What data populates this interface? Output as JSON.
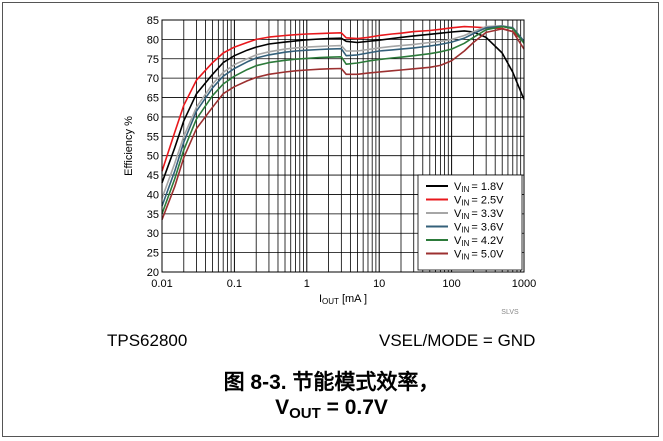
{
  "chart_data": {
    "type": "line",
    "xscale": "log",
    "xlabel": "I",
    "xlabel_sub": "OUT",
    "xlabel_unit": "[mA ]",
    "ylabel": "Efficiency %",
    "xlim": [
      0.01,
      1000
    ],
    "ylim": [
      20,
      85
    ],
    "grid": true,
    "legend_position": "lower-right",
    "x_ticks": [
      "0.01",
      "0.1",
      "1",
      "10",
      "100",
      "1000"
    ],
    "y_ticks": [
      "20",
      "25",
      "30",
      "35",
      "40",
      "45",
      "50",
      "55",
      "60",
      "65",
      "70",
      "75",
      "80",
      "85"
    ],
    "corner_tag": "SLVS",
    "x": [
      0.01,
      0.015,
      0.02,
      0.03,
      0.05,
      0.07,
      0.1,
      0.15,
      0.2,
      0.3,
      0.5,
      0.7,
      1,
      1.5,
      2,
      3,
      3.5,
      5,
      7,
      10,
      15,
      20,
      30,
      50,
      70,
      100,
      150,
      200,
      300,
      500,
      700,
      1000
    ],
    "series": [
      {
        "label_sub": "IN",
        "label_value": "= 1.8V",
        "color": "#000000",
        "values": [
          43,
          52,
          59,
          66,
          71,
          74,
          75.8,
          77.2,
          78,
          78.8,
          79.3,
          79.6,
          79.9,
          80.1,
          80.2,
          80.3,
          79.5,
          79.2,
          79.5,
          79.8,
          80.2,
          80.5,
          80.9,
          81.3,
          81.6,
          81.9,
          82.2,
          81.9,
          80.5,
          76.5,
          71.5,
          64.5
        ]
      },
      {
        "label_sub": "IN",
        "label_value": "= 2.5V",
        "color": "#e8181c",
        "values": [
          46,
          56,
          63,
          69.5,
          74,
          76.5,
          78,
          79.2,
          80,
          80.6,
          81,
          81.2,
          81.4,
          81.5,
          81.6,
          81.7,
          80.4,
          80.2,
          80.5,
          81,
          81.4,
          81.6,
          82,
          82.3,
          82.6,
          83,
          83.3,
          83.2,
          83,
          82.8,
          82,
          79.5
        ]
      },
      {
        "label_sub": "IN",
        "label_value": "= 3.3V",
        "color": "#a6a6a6",
        "values": [
          39,
          48,
          55,
          62.5,
          68.5,
          71.5,
          73.5,
          75,
          76,
          76.8,
          77.5,
          77.8,
          78,
          78.2,
          78.3,
          78.4,
          77,
          77,
          77.4,
          77.8,
          78.2,
          78.4,
          78.7,
          79.2,
          79.5,
          80,
          81,
          82,
          83.3,
          83.5,
          83,
          79.5
        ]
      },
      {
        "label_sub": "IN",
        "label_value": "= 3.6V",
        "color": "#34607a",
        "values": [
          37,
          46,
          53.5,
          61.5,
          67.5,
          70.5,
          72.5,
          74.2,
          75.2,
          76,
          76.7,
          77,
          77.2,
          77.4,
          77.5,
          77.6,
          75.8,
          76,
          76.5,
          77,
          77.3,
          77.5,
          77.8,
          78.3,
          78.7,
          79.3,
          80.3,
          81.5,
          83,
          83.4,
          83,
          79.5
        ]
      },
      {
        "label_sub": "IN",
        "label_value": "= 4.2V",
        "color": "#2c7a3a",
        "values": [
          35,
          44,
          51.5,
          59.5,
          65.5,
          68.5,
          70.5,
          72.2,
          73.2,
          74,
          74.6,
          74.9,
          75.1,
          75.3,
          75.4,
          75.5,
          73.6,
          73.9,
          74.4,
          74.8,
          75.2,
          75.4,
          75.8,
          76.3,
          76.8,
          77.5,
          79,
          80.5,
          82.5,
          83.3,
          82.8,
          79
        ]
      },
      {
        "label_sub": "IN",
        "label_value": "= 5.0V",
        "color": "#9c3030",
        "values": [
          33.5,
          42,
          49.5,
          57,
          62.5,
          66,
          67.8,
          69.3,
          70.2,
          71,
          71.6,
          71.9,
          72.1,
          72.3,
          72.4,
          72.5,
          71,
          71,
          71.3,
          71.6,
          71.9,
          72.1,
          72.4,
          72.8,
          73.3,
          74.5,
          77,
          79.2,
          81.8,
          82.7,
          82,
          77.5
        ]
      }
    ]
  },
  "caption": {
    "device": "TPS62800",
    "config": "VSEL/MODE = GND",
    "figure_title": "图 8-3. 节能模式效率，",
    "figure_sub_prefix": "V",
    "figure_sub_sub": "OUT",
    "figure_sub_suffix": " = 0.7V"
  }
}
